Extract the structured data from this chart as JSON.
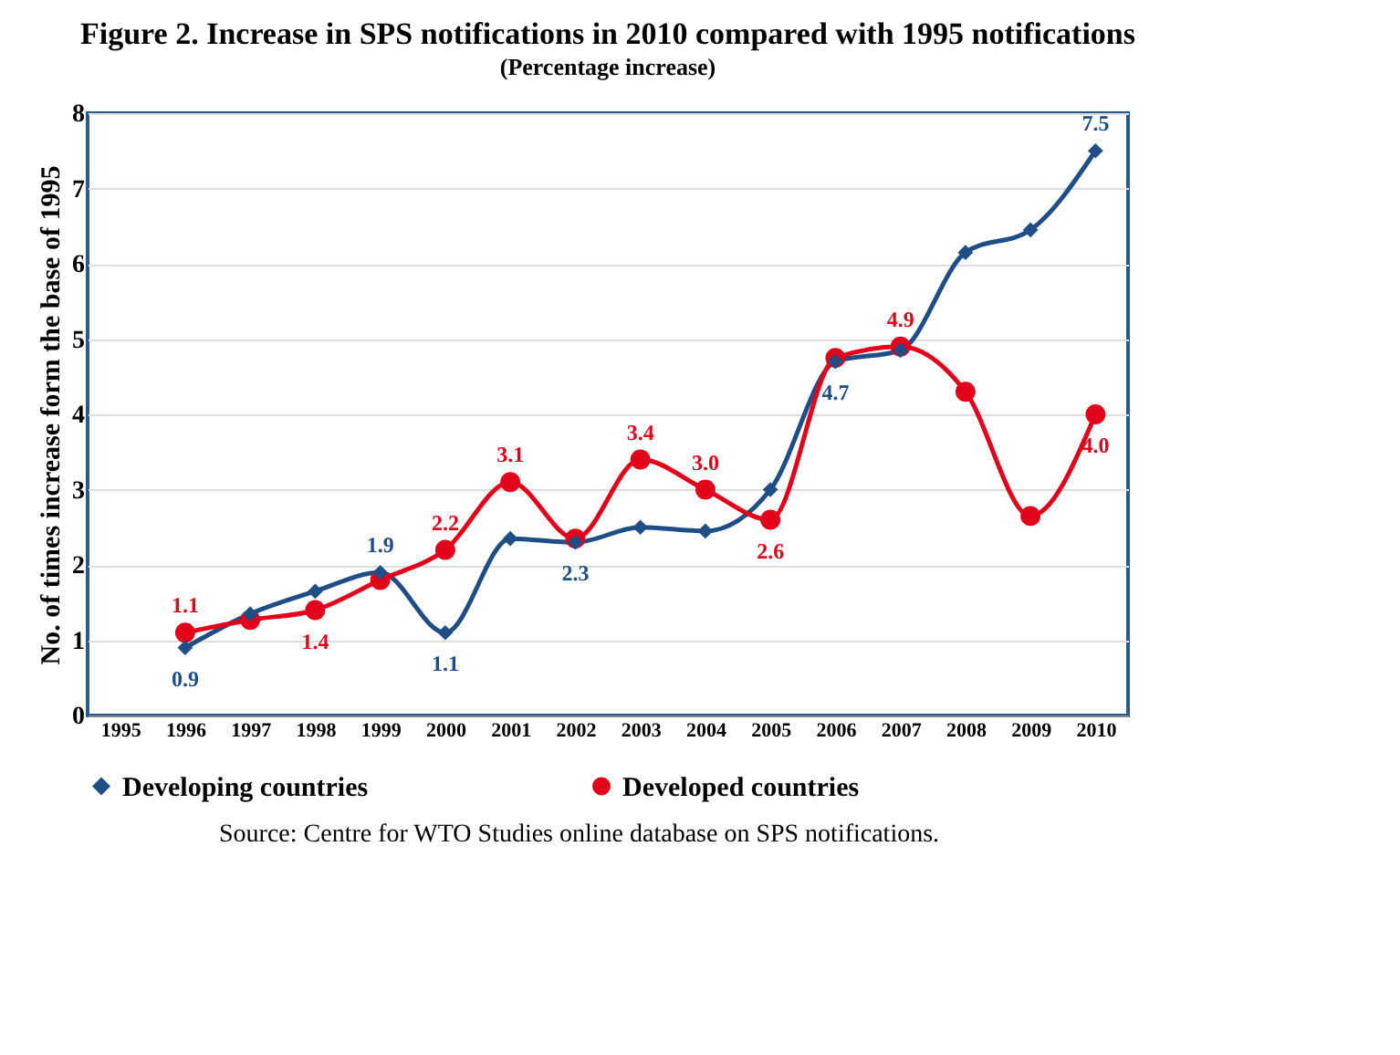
{
  "chart_data": {
    "type": "line",
    "title": "Figure 2. Increase in SPS notifications in 2010 compared with 1995 notifications",
    "subtitle": "(Percentage increase)",
    "ylabel": "No. of times increase form the base of 1995",
    "categories": [
      "1995",
      "1996",
      "1997",
      "1998",
      "1999",
      "2000",
      "2001",
      "2002",
      "2003",
      "2004",
      "2005",
      "2006",
      "2007",
      "2008",
      "2009",
      "2010"
    ],
    "series": [
      {
        "name": "Developing countries",
        "color": "#1f4e87",
        "marker": "diamond",
        "values": [
          null,
          0.9,
          1.35,
          1.65,
          1.9,
          1.1,
          2.35,
          2.3,
          2.5,
          2.45,
          3.0,
          4.7,
          4.85,
          6.15,
          6.45,
          7.5
        ],
        "value_labels": [
          null,
          "0.9",
          null,
          null,
          "1.9",
          "1.1",
          null,
          "2.3",
          null,
          null,
          null,
          "4.7",
          null,
          null,
          null,
          "7.5"
        ]
      },
      {
        "name": "Developed countries",
        "color": "#e3001b",
        "marker": "circle",
        "values": [
          null,
          1.1,
          1.27,
          1.4,
          1.8,
          2.2,
          3.1,
          2.35,
          3.4,
          3.0,
          2.6,
          4.75,
          4.9,
          4.3,
          2.65,
          4.0
        ],
        "value_labels": [
          null,
          "1.1",
          null,
          "1.4",
          null,
          "2.2",
          "3.1",
          null,
          "3.4",
          "3.0",
          "2.6",
          null,
          "4.9",
          null,
          null,
          "4.0"
        ]
      }
    ],
    "ylim": [
      0,
      8
    ],
    "yticks": [
      0,
      1,
      2,
      3,
      4,
      5,
      6,
      7,
      8
    ],
    "grid": "y",
    "legend": "bottom",
    "line_style": "solid",
    "annotations": [
      "Source: Centre for WTO Studies online database on SPS notifications."
    ]
  }
}
